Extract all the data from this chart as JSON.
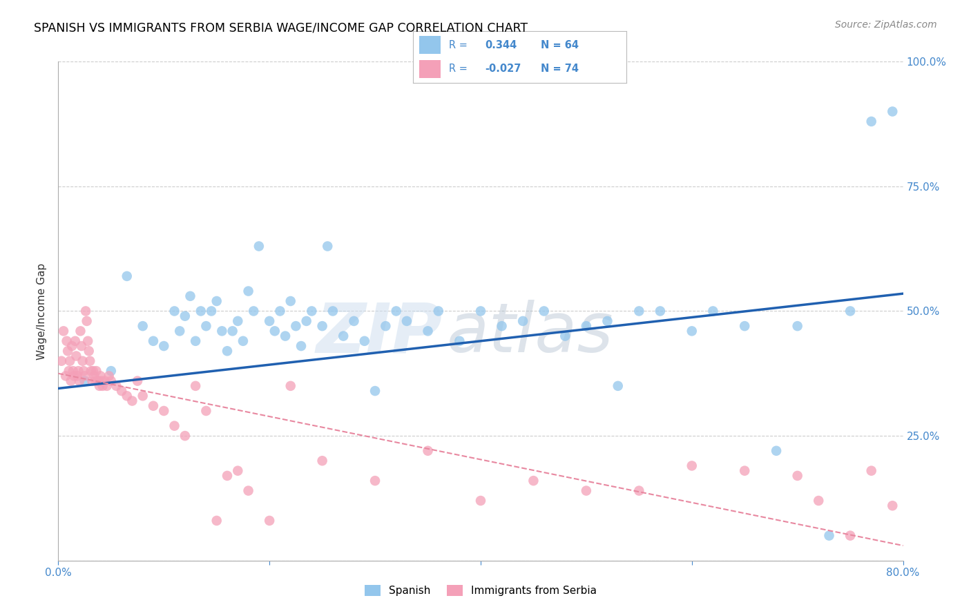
{
  "title": "SPANISH VS IMMIGRANTS FROM SERBIA WAGE/INCOME GAP CORRELATION CHART",
  "source": "Source: ZipAtlas.com",
  "ylabel": "Wage/Income Gap",
  "legend_label1": "Spanish",
  "legend_label2": "Immigrants from Serbia",
  "r1": 0.344,
  "n1": 64,
  "r2": -0.027,
  "n2": 74,
  "xlim": [
    0.0,
    0.8
  ],
  "ylim": [
    0.0,
    1.0
  ],
  "yticks": [
    0.0,
    0.25,
    0.5,
    0.75,
    1.0
  ],
  "ytick_labels": [
    "",
    "25.0%",
    "50.0%",
    "75.0%",
    "100.0%"
  ],
  "blue_color": "#93C6EC",
  "pink_color": "#F4A0B8",
  "blue_line_color": "#2060B0",
  "pink_line_color": "#E888A0",
  "watermark_zip": "ZIP",
  "watermark_atlas": "atlas",
  "background_color": "#FFFFFF",
  "blue_line_x0": 0.0,
  "blue_line_y0": 0.345,
  "blue_line_x1": 0.8,
  "blue_line_y1": 0.535,
  "pink_line_x0": 0.0,
  "pink_line_y0": 0.375,
  "pink_line_x1": 0.8,
  "pink_line_y1": 0.03,
  "blue_x": [
    0.025,
    0.05,
    0.065,
    0.08,
    0.09,
    0.1,
    0.11,
    0.115,
    0.12,
    0.125,
    0.13,
    0.135,
    0.14,
    0.145,
    0.15,
    0.155,
    0.16,
    0.165,
    0.17,
    0.175,
    0.18,
    0.185,
    0.19,
    0.2,
    0.205,
    0.21,
    0.215,
    0.22,
    0.225,
    0.23,
    0.235,
    0.24,
    0.25,
    0.255,
    0.26,
    0.27,
    0.28,
    0.29,
    0.3,
    0.31,
    0.32,
    0.33,
    0.35,
    0.36,
    0.38,
    0.4,
    0.42,
    0.44,
    0.46,
    0.48,
    0.5,
    0.52,
    0.53,
    0.55,
    0.57,
    0.6,
    0.62,
    0.65,
    0.68,
    0.7,
    0.73,
    0.75,
    0.77,
    0.79
  ],
  "blue_y": [
    0.36,
    0.38,
    0.57,
    0.47,
    0.44,
    0.43,
    0.5,
    0.46,
    0.49,
    0.53,
    0.44,
    0.5,
    0.47,
    0.5,
    0.52,
    0.46,
    0.42,
    0.46,
    0.48,
    0.44,
    0.54,
    0.5,
    0.63,
    0.48,
    0.46,
    0.5,
    0.45,
    0.52,
    0.47,
    0.43,
    0.48,
    0.5,
    0.47,
    0.63,
    0.5,
    0.45,
    0.48,
    0.44,
    0.34,
    0.47,
    0.5,
    0.48,
    0.46,
    0.5,
    0.44,
    0.5,
    0.47,
    0.48,
    0.5,
    0.45,
    0.47,
    0.48,
    0.35,
    0.5,
    0.5,
    0.46,
    0.5,
    0.47,
    0.22,
    0.47,
    0.05,
    0.5,
    0.88,
    0.9
  ],
  "pink_x": [
    0.003,
    0.005,
    0.007,
    0.008,
    0.009,
    0.01,
    0.011,
    0.012,
    0.013,
    0.014,
    0.015,
    0.016,
    0.017,
    0.018,
    0.019,
    0.02,
    0.021,
    0.022,
    0.023,
    0.024,
    0.025,
    0.026,
    0.027,
    0.028,
    0.029,
    0.03,
    0.031,
    0.032,
    0.033,
    0.034,
    0.035,
    0.036,
    0.037,
    0.038,
    0.039,
    0.04,
    0.041,
    0.042,
    0.044,
    0.046,
    0.048,
    0.05,
    0.055,
    0.06,
    0.065,
    0.07,
    0.075,
    0.08,
    0.09,
    0.1,
    0.11,
    0.12,
    0.13,
    0.14,
    0.15,
    0.16,
    0.17,
    0.18,
    0.2,
    0.22,
    0.25,
    0.3,
    0.35,
    0.4,
    0.45,
    0.5,
    0.55,
    0.6,
    0.65,
    0.7,
    0.72,
    0.75,
    0.77,
    0.79
  ],
  "pink_y": [
    0.4,
    0.46,
    0.37,
    0.44,
    0.42,
    0.38,
    0.4,
    0.36,
    0.43,
    0.38,
    0.37,
    0.44,
    0.41,
    0.37,
    0.38,
    0.36,
    0.46,
    0.43,
    0.4,
    0.38,
    0.37,
    0.5,
    0.48,
    0.44,
    0.42,
    0.4,
    0.38,
    0.36,
    0.38,
    0.37,
    0.36,
    0.38,
    0.36,
    0.36,
    0.35,
    0.37,
    0.36,
    0.35,
    0.36,
    0.35,
    0.37,
    0.36,
    0.35,
    0.34,
    0.33,
    0.32,
    0.36,
    0.33,
    0.31,
    0.3,
    0.27,
    0.25,
    0.35,
    0.3,
    0.08,
    0.17,
    0.18,
    0.14,
    0.08,
    0.35,
    0.2,
    0.16,
    0.22,
    0.12,
    0.16,
    0.14,
    0.14,
    0.19,
    0.18,
    0.17,
    0.12,
    0.05,
    0.18,
    0.11
  ]
}
